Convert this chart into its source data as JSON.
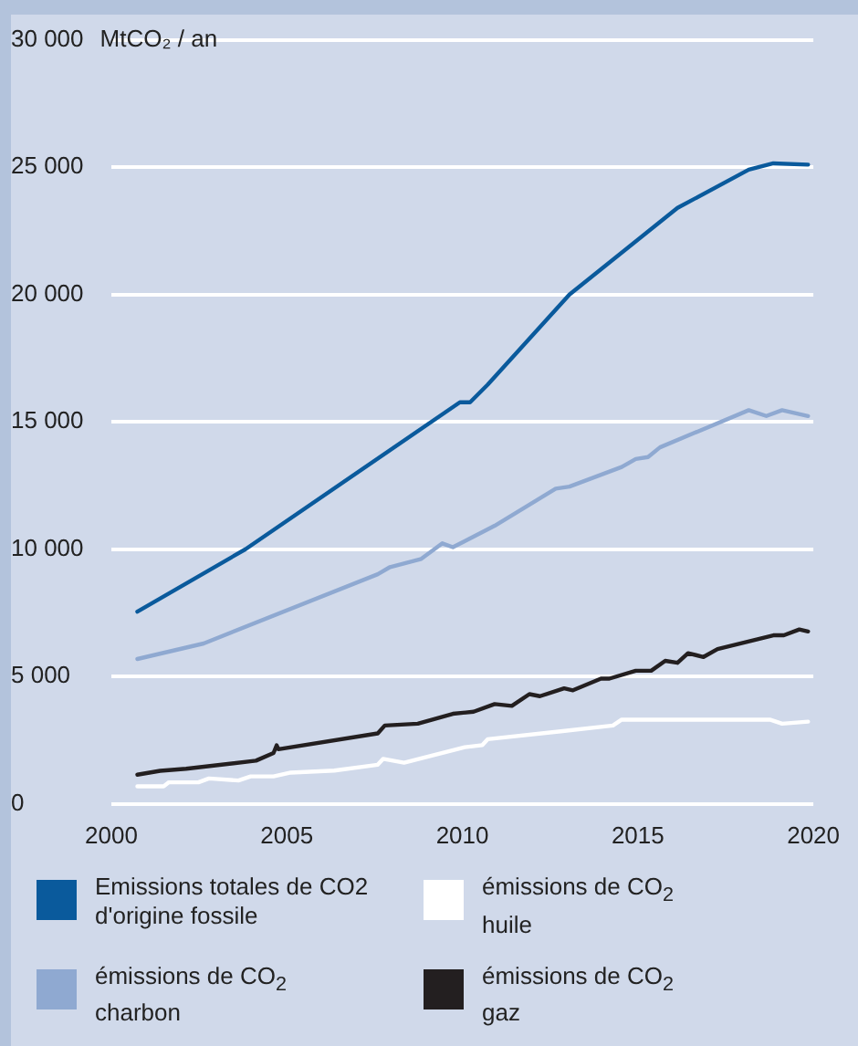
{
  "chart_data": {
    "type": "line",
    "ylabel": "MtCO₂ / an",
    "xlim": [
      2000,
      2020
    ],
    "xticks": [
      2000,
      2005,
      2010,
      2015,
      2020
    ],
    "ylim": [
      0,
      30000
    ],
    "yticks": [
      {
        "value": 0,
        "label": "0"
      },
      {
        "value": 5000,
        "label": "5 000"
      },
      {
        "value": 10000,
        "label": "10 000"
      },
      {
        "value": 15000,
        "label": "15 000"
      },
      {
        "value": 20000,
        "label": "20 000"
      },
      {
        "value": 25000,
        "label": "25 000"
      },
      {
        "value": 30000,
        "label": "30 000"
      }
    ],
    "grid": "y",
    "legend": "bottom",
    "marker": "none",
    "line_style": "solid",
    "series": [
      {
        "name": "Emissions totales de CO2\nd'origine fossile",
        "color": "#0a5a9c",
        "x": [
          2000.74,
          2003.82,
          2009.93,
          2010.22,
          2010.72,
          2013.05,
          2016.13,
          2018.16,
          2018.86,
          2019.85
        ],
        "values": [
          7550,
          10000,
          15770,
          15770,
          16460,
          20000,
          23400,
          24900,
          25150,
          25100
        ]
      },
      {
        "name": "émissions de CO$_{2}$\ncharbon",
        "color": "#8fa9d1",
        "x": [
          2000.74,
          2002.63,
          2007.59,
          2007.94,
          2008.83,
          2009.43,
          2009.73,
          2010.92,
          2012.66,
          2013.05,
          2014.54,
          2014.94,
          2015.29,
          2015.63,
          2018.16,
          2018.66,
          2019.11,
          2019.85
        ],
        "values": [
          5690,
          6300,
          9020,
          9300,
          9620,
          10230,
          10080,
          10920,
          12380,
          12460,
          13230,
          13540,
          13620,
          14000,
          15460,
          15230,
          15460,
          15230
        ]
      },
      {
        "name": "émissions de CO$_{2}$\nhuile",
        "color": "#ffffff",
        "x": [
          2000.74,
          2001.49,
          2001.64,
          2002.48,
          2002.78,
          2003.62,
          2003.97,
          2004.62,
          2005.11,
          2006.35,
          2007.59,
          2007.74,
          2008.34,
          2010.07,
          2010.57,
          2010.72,
          2012.8,
          2014.29,
          2014.54,
          2018.76,
          2019.11,
          2019.85
        ],
        "values": [
          690,
          690,
          850,
          850,
          1000,
          920,
          1080,
          1080,
          1230,
          1310,
          1540,
          1770,
          1620,
          2230,
          2310,
          2540,
          2850,
          3080,
          3310,
          3310,
          3150,
          3230
        ]
      },
      {
        "name": "émissions de CO$_{2}$\ngaz",
        "color": "#231f20",
        "x": [
          2000.74,
          2001.39,
          2002.13,
          2004.12,
          2004.62,
          2004.71,
          2004.76,
          2007.59,
          2007.79,
          2008.73,
          2009.73,
          2010.32,
          2010.92,
          2011.41,
          2011.91,
          2012.21,
          2012.9,
          2013.15,
          2013.95,
          2014.19,
          2014.94,
          2015.38,
          2015.78,
          2016.13,
          2016.43,
          2016.87,
          2017.27,
          2018.86,
          2019.16,
          2019.6,
          2019.85
        ],
        "values": [
          1150,
          1300,
          1380,
          1700,
          2000,
          2300,
          2150,
          2770,
          3080,
          3150,
          3540,
          3620,
          3920,
          3850,
          4310,
          4230,
          4540,
          4460,
          4920,
          4920,
          5230,
          5230,
          5620,
          5540,
          5920,
          5770,
          6080,
          6620,
          6620,
          6850,
          6770
        ]
      }
    ]
  }
}
